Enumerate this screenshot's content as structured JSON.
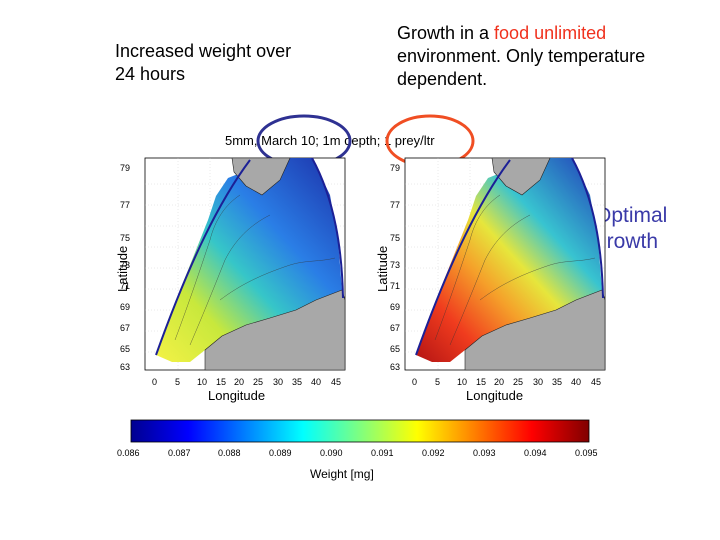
{
  "slide": {
    "left_text": "Increased weight over\n24 hours",
    "right_text_prefix": "Growth in a ",
    "right_text_highlight": "food unlimited",
    "right_text_suffix": "environment.  Only temperature dependent.",
    "side_label": "Optimal\ngrowth",
    "subtitle": "5mm, March 10; 1m depth; 1 prey/ltr",
    "colors": {
      "highlight": "#f0321e",
      "side_label": "#3a3aa8",
      "circle_blue": "#2e3192",
      "circle_red": "#f04e23"
    }
  },
  "chart_data": [
    {
      "type": "heatmap",
      "xlabel": "Longitude",
      "ylabel": "Latitude",
      "x_ticks": [
        "0",
        "5",
        "10",
        "15",
        "20",
        "25",
        "30",
        "35",
        "40",
        "45"
      ],
      "y_ticks": [
        "63",
        "65",
        "67",
        "69",
        "71",
        "73",
        "75",
        "77",
        "79"
      ],
      "xlim": [
        0,
        45
      ],
      "ylim": [
        63,
        80
      ],
      "color_summary": "low weight (blue) in north/east, moderate (yellow) along Norwegian coast"
    },
    {
      "type": "heatmap",
      "xlabel": "Longitude",
      "ylabel": "Latitude",
      "x_ticks": [
        "0",
        "5",
        "10",
        "15",
        "20",
        "25",
        "30",
        "35",
        "40",
        "45"
      ],
      "y_ticks": [
        "63",
        "65",
        "67",
        "69",
        "71",
        "73",
        "75",
        "77",
        "79"
      ],
      "xlim": [
        0,
        45
      ],
      "ylim": [
        63,
        80
      ],
      "color_summary": "high weight (red) along Norwegian coast, low (blue) in north/east"
    }
  ],
  "colorbar": {
    "ticks": [
      "0.086",
      "0.087",
      "0.088",
      "0.089",
      "0.090",
      "0.091",
      "0.092",
      "0.093",
      "0.094",
      "0.095"
    ],
    "label": "Weight [mg]",
    "range": [
      0.086,
      0.095
    ]
  }
}
